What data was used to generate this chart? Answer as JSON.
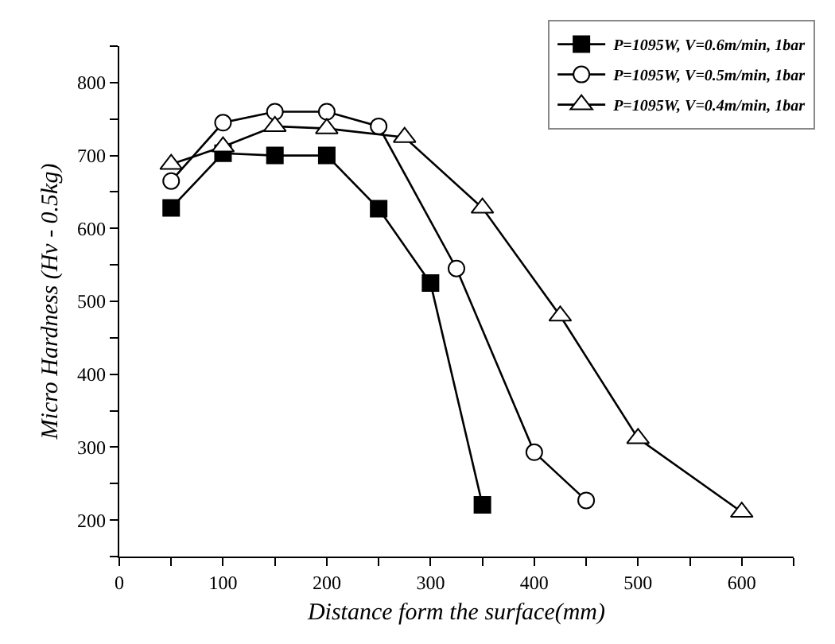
{
  "chart_data": {
    "type": "line",
    "xlabel": "Distance form the surface(mm)",
    "ylabel": "Micro Hardness (Hv - 0.5kg)",
    "xlim": [
      0,
      650
    ],
    "ylim": [
      150,
      850
    ],
    "xticks": [
      0,
      {
        "value": 50,
        "label": null
      },
      100,
      {
        "value": 150,
        "label": null
      },
      200,
      {
        "value": 250,
        "label": null
      },
      300,
      {
        "value": 350,
        "label": null
      },
      400,
      {
        "value": 450,
        "label": null
      },
      500,
      {
        "value": 550,
        "label": null
      },
      600,
      {
        "value": 650,
        "label": null
      }
    ],
    "yticks": [
      {
        "value": 150,
        "label": null
      },
      200,
      {
        "value": 250,
        "label": null
      },
      300,
      {
        "value": 350,
        "label": null
      },
      400,
      {
        "value": 450,
        "label": null
      },
      500,
      {
        "value": 550,
        "label": null
      },
      600,
      {
        "value": 650,
        "label": null
      },
      700,
      {
        "value": 750,
        "label": null
      },
      800,
      {
        "value": 850,
        "label": null
      }
    ],
    "legend": "top right",
    "line_style": "solid",
    "series": [
      {
        "name": "P=1095W, V=0.6m/min, 1bar",
        "color": "#000000",
        "marker": "square-filled",
        "x": [
          50,
          100,
          150,
          200,
          250,
          300,
          350
        ],
        "values": [
          628,
          703,
          700,
          700,
          627,
          525,
          221
        ]
      },
      {
        "name": "P=1095W, V=0.5m/min, 1bar",
        "color": "#000000",
        "marker": "circle",
        "x": [
          50,
          100,
          150,
          200,
          250,
          325,
          400,
          450
        ],
        "values": [
          665,
          745,
          760,
          760,
          740,
          545,
          293,
          227
        ]
      },
      {
        "name": "P=1095W, V=0.4m/min, 1bar",
        "color": "#000000",
        "marker": "triangle",
        "x": [
          50,
          100,
          150,
          200,
          275,
          350,
          425,
          500,
          600
        ],
        "values": [
          688,
          712,
          740,
          737,
          725,
          628,
          480,
          312,
          211
        ]
      }
    ]
  }
}
